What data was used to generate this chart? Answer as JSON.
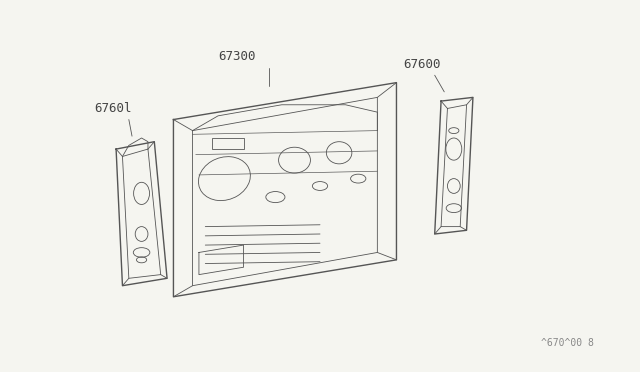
{
  "bg_color": "#f5f5f0",
  "line_color": "#555555",
  "text_color": "#444444",
  "title_text": "",
  "watermark": "^670^00 8",
  "labels": {
    "67300": [
      0.42,
      0.18
    ],
    "67600": [
      0.68,
      0.14
    ],
    "6760l": [
      0.18,
      0.52
    ]
  },
  "label_fontsize": 9,
  "watermark_fontsize": 7
}
